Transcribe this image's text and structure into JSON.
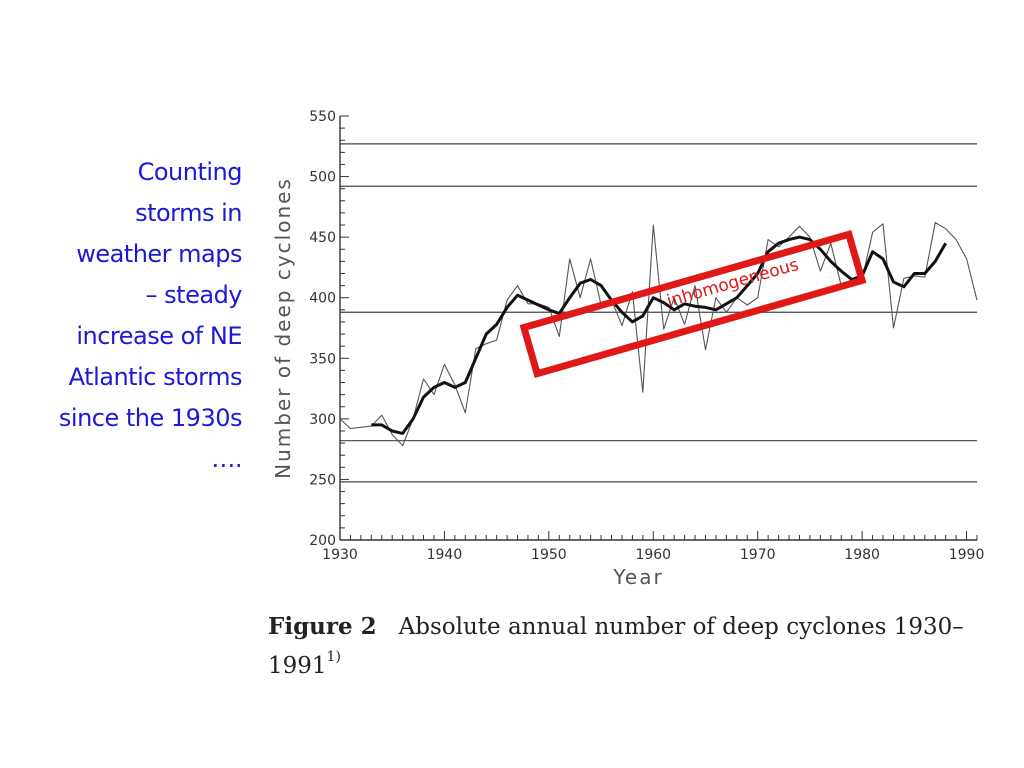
{
  "slide": {
    "lines": [
      "Counting",
      "storms in",
      "weather maps",
      "– steady",
      "increase of NE",
      "Atlantic storms",
      "since the 1930s",
      "…."
    ],
    "text_color": "#1a1ad6"
  },
  "caption": {
    "figure_label": "Figure 2",
    "text": "Absolute annual number of deep cyclones 1930–1991",
    "superscript": "1)"
  },
  "chart_data": {
    "type": "line",
    "xlabel": "Year",
    "ylabel": "Number of deep cyclones",
    "xlim": [
      1930,
      1991
    ],
    "ylim": [
      200,
      550
    ],
    "x_ticks": [
      1930,
      1940,
      1950,
      1960,
      1970,
      1980,
      1990
    ],
    "y_ticks": [
      200,
      250,
      300,
      350,
      400,
      450,
      500,
      550
    ],
    "horizontal_reference_lines": [
      248,
      282,
      388,
      492,
      527
    ],
    "grid": false,
    "legend": "none",
    "series": [
      {
        "style": "thin",
        "x": [
          1930,
          1931,
          1932,
          1933,
          1934,
          1935,
          1936,
          1937,
          1938,
          1939,
          1940,
          1941,
          1942,
          1943,
          1944,
          1945,
          1946,
          1947,
          1948,
          1949,
          1950,
          1951,
          1952,
          1953,
          1954,
          1955,
          1956,
          1957,
          1958,
          1959,
          1960,
          1961,
          1962,
          1963,
          1964,
          1965,
          1966,
          1967,
          1968,
          1969,
          1970,
          1971,
          1972,
          1973,
          1974,
          1975,
          1976,
          1977,
          1978,
          1979,
          1980,
          1981,
          1982,
          1983,
          1984,
          1985,
          1986,
          1987,
          1988,
          1989,
          1990,
          1991
        ],
        "values": [
          300,
          292,
          293,
          294,
          303,
          287,
          278,
          300,
          333,
          320,
          345,
          328,
          305,
          358,
          362,
          365,
          398,
          410,
          395,
          395,
          392,
          368,
          432,
          400,
          432,
          394,
          398,
          377,
          405,
          322,
          460,
          374,
          400,
          378,
          410,
          357,
          400,
          388,
          400,
          394,
          400,
          448,
          442,
          450,
          459,
          450,
          422,
          445,
          410,
          415,
          415,
          454,
          461,
          375,
          416,
          418,
          417,
          462,
          457,
          448,
          432,
          398
        ]
      },
      {
        "style": "thick",
        "x": [
          1933,
          1934,
          1935,
          1936,
          1937,
          1938,
          1939,
          1940,
          1941,
          1942,
          1943,
          1944,
          1945,
          1946,
          1947,
          1948,
          1949,
          1950,
          1951,
          1952,
          1953,
          1954,
          1955,
          1956,
          1957,
          1958,
          1959,
          1960,
          1961,
          1962,
          1963,
          1964,
          1965,
          1966,
          1967,
          1968,
          1969,
          1970,
          1971,
          1972,
          1973,
          1974,
          1975,
          1976,
          1977,
          1978,
          1979,
          1980,
          1981,
          1982,
          1983,
          1984,
          1985,
          1986,
          1987,
          1988
        ],
        "values": [
          295,
          295,
          290,
          288,
          300,
          318,
          326,
          330,
          326,
          330,
          350,
          370,
          378,
          392,
          402,
          398,
          394,
          390,
          387,
          400,
          412,
          415,
          410,
          398,
          388,
          380,
          385,
          400,
          396,
          390,
          395,
          393,
          392,
          390,
          395,
          400,
          410,
          420,
          438,
          445,
          448,
          450,
          448,
          440,
          430,
          422,
          415,
          418,
          438,
          432,
          413,
          409,
          420,
          420,
          430,
          445
        ]
      }
    ]
  },
  "annotation": {
    "label": "inhomogeneous",
    "color": "#e01818",
    "rotation_deg": -16
  }
}
